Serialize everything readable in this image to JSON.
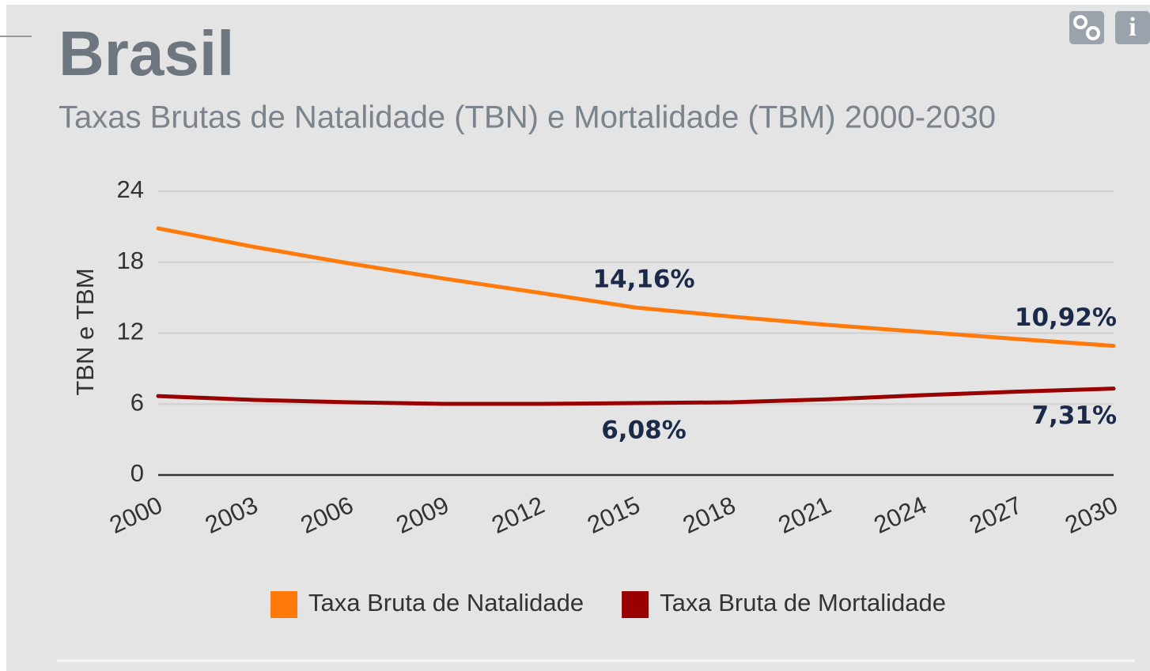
{
  "chart_data": {
    "type": "line",
    "title": "Brasil",
    "subtitle": "Taxas Brutas de Natalidade (TBN) e Mortalidade (TBM) 2000-2030",
    "y_label": "TBN e TBM",
    "x": [
      2000,
      2003,
      2006,
      2009,
      2012,
      2015,
      2018,
      2021,
      2024,
      2027,
      2030
    ],
    "xlim": [
      2000,
      2030
    ],
    "xticks": [
      2000,
      2003,
      2006,
      2009,
      2012,
      2015,
      2018,
      2021,
      2024,
      2027,
      2030
    ],
    "ylim": [
      0,
      24
    ],
    "yticks": [
      0,
      6,
      12,
      18,
      24
    ],
    "grid": true,
    "legend": "bottom",
    "series": [
      {
        "name": "Taxa Bruta de Natalidade",
        "color": "#ff7a0a",
        "values": [
          20.86,
          19.3,
          17.9,
          16.6,
          15.4,
          14.16,
          13.4,
          12.7,
          12.1,
          11.5,
          10.92
        ],
        "value_labels": [
          null,
          null,
          null,
          null,
          null,
          "14,16%",
          null,
          null,
          null,
          null,
          "10,92%"
        ]
      },
      {
        "name": "Taxa Bruta de Mortalidade",
        "color": "#990000",
        "values": [
          6.68,
          6.35,
          6.15,
          6.02,
          6.02,
          6.08,
          6.15,
          6.4,
          6.75,
          7.05,
          7.31
        ],
        "value_labels": [
          null,
          null,
          null,
          null,
          null,
          "6,08%",
          null,
          null,
          null,
          null,
          "7,31%"
        ]
      }
    ]
  }
}
